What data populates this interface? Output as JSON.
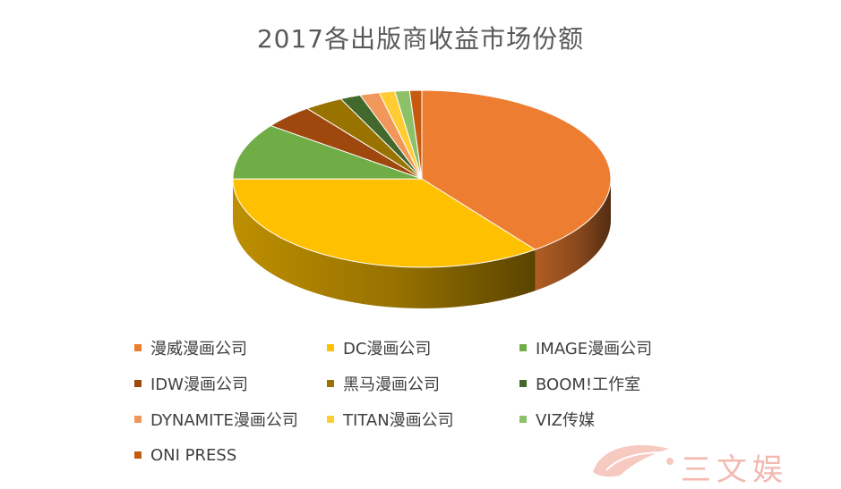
{
  "chart_data": {
    "type": "pie",
    "title": "2017各出版商收益市场份额",
    "legend_position": "bottom",
    "categories": [
      "漫威漫画公司",
      "DC漫画公司",
      "IMAGE漫画公司",
      "IDW漫画公司",
      "黑马漫画公司",
      "BOOM!工作室",
      "DYNAMITE漫画公司",
      "TITAN漫画公司",
      "VIZ传媒",
      "ONI PRESS"
    ],
    "values": [
      38.3,
      33.9,
      9.9,
      4.2,
      3.2,
      1.7,
      1.6,
      1.3,
      1.2,
      1.0
    ],
    "colors": [
      "#ED7D31",
      "#FFC000",
      "#70AD47",
      "#9E480E",
      "#997300",
      "#43682B",
      "#F1975A",
      "#FFCD33",
      "#8CC168",
      "#C55A11"
    ]
  },
  "watermark": {
    "text": "三文娱"
  }
}
